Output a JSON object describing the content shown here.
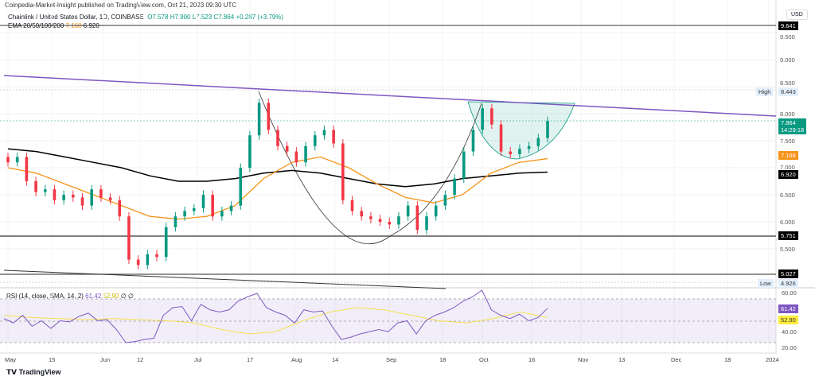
{
  "header": {
    "published": "Coinpedia-Market-Insight published on TradingView.com, Oct 21, 2023 09:30 UTC",
    "symbol": "Chainlink / United States Dollar, 1D, COINBASE",
    "open": "O7.578",
    "high": "H7.900",
    "low": "L7.523",
    "close": "C7.864",
    "change": "+0.287 (+3.79%)",
    "ema_label": "EMA 20/50/100/200",
    "ema_v1": "7.168",
    "ema_v2": "6.920",
    "rsi_label": "RSI (14, close, SMA, 14, 2)",
    "rsi_v": "61.42",
    "rsi_sma": "52.90",
    "rsi_x": "∅ ∅",
    "currency": "USD",
    "brand": "TradingView"
  },
  "chart_data": {
    "type": "candlestick",
    "closes": [
      7.1,
      7.2,
      6.75,
      6.55,
      6.6,
      6.4,
      6.5,
      6.45,
      6.3,
      6.6,
      6.45,
      6.4,
      6.1,
      5.3,
      5.2,
      5.4,
      5.35,
      5.9,
      6.1,
      6.2,
      6.25,
      6.5,
      6.1,
      6.2,
      6.3,
      7.0,
      7.6,
      8.2,
      7.7,
      7.4,
      7.3,
      7.1,
      7.4,
      7.6,
      7.7,
      7.45,
      6.4,
      6.2,
      6.1,
      6.05,
      6.0,
      5.95,
      6.1,
      6.3,
      5.85,
      6.1,
      6.3,
      6.5,
      6.8,
      7.3,
      7.7,
      8.1,
      7.8,
      7.3,
      7.25,
      7.35,
      7.4,
      7.55,
      7.864
    ],
    "ema50": [
      7.0,
      6.9,
      6.7,
      6.5,
      6.3,
      6.1,
      6.05,
      6.1,
      6.3,
      6.8,
      7.1,
      7.2,
      7.0,
      6.7,
      6.45,
      6.35,
      6.5,
      6.9,
      7.1,
      7.168
    ],
    "ema200": [
      7.35,
      7.3,
      7.2,
      7.1,
      7.0,
      6.85,
      6.75,
      6.75,
      6.8,
      6.9,
      6.95,
      6.9,
      6.8,
      6.7,
      6.65,
      6.7,
      6.8,
      6.85,
      6.9,
      6.92
    ],
    "rsi": [
      52,
      48,
      55,
      45,
      50,
      43,
      50,
      49,
      54,
      57,
      50,
      51,
      42,
      30,
      31,
      33,
      34,
      55,
      62,
      63,
      50,
      65,
      60,
      58,
      60,
      68,
      72,
      75,
      62,
      58,
      55,
      48,
      60,
      58,
      59,
      45,
      33,
      35,
      38,
      40,
      42,
      40,
      48,
      50,
      38,
      50,
      55,
      58,
      62,
      68,
      72,
      78,
      60,
      55,
      52,
      56,
      50,
      53,
      61.42
    ],
    "rsi_sma": [
      55,
      53,
      52,
      51,
      52,
      51,
      50,
      48,
      42,
      38,
      40,
      50,
      58,
      62,
      60,
      55,
      50,
      48,
      52,
      58,
      52.9
    ],
    "y_ticks": [
      "9.500",
      "9.000",
      "8.500",
      "8.000",
      "7.500",
      "7.000",
      "6.500",
      "6.000",
      "5.500"
    ],
    "y_values": [
      9.5,
      9.0,
      8.5,
      8.0,
      7.5,
      7.0,
      6.5,
      6.0,
      5.5
    ],
    "rsi_ticks": [
      "60.00",
      "40.00",
      "20.00"
    ],
    "x_ticks": [
      "May",
      "15",
      "Jun",
      "12",
      "Jul",
      "17",
      "Aug",
      "14",
      "Sep",
      "18",
      "Oct",
      "16",
      "Nov",
      "13",
      "Dec",
      "18",
      "2024"
    ],
    "levels": {
      "top": "9.641",
      "support1": "5.751",
      "support2": "5.027",
      "high_label": "High",
      "high": "8.443",
      "low_label": "Low",
      "low": "4.926",
      "last": "7.864",
      "countdown": "14:29:18",
      "ema_fast": "7.168",
      "ema_slow": "6.920"
    },
    "colors": {
      "up": "#089981",
      "down": "#f23645",
      "ema50": "#f7931a",
      "ema200": "#000000",
      "trend": "#7e57c2",
      "rsi": "#7e57c2",
      "rsi_sma": "#f5e050"
    }
  }
}
